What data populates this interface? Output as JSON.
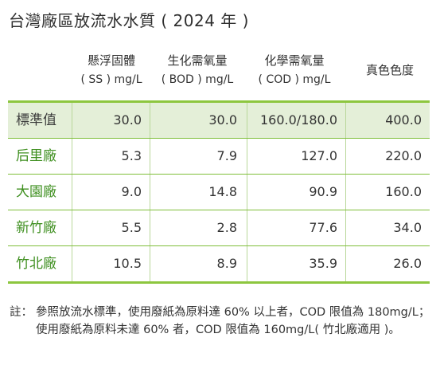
{
  "title": "台灣廠區放流水水質 ( 2024 年 )",
  "headers": [
    {
      "line1": "懸浮固體",
      "line2": "( SS ) mg/L"
    },
    {
      "line1": "生化需氧量",
      "line2": "( BOD ) mg/L"
    },
    {
      "line1": "化學需氧量",
      "line2": "( COD ) mg/L"
    },
    {
      "line1": "真色色度",
      "line2": ""
    }
  ],
  "rows": [
    {
      "label": "標準值",
      "ss": "30.0",
      "bod": "30.0",
      "cod": "160.0/180.0",
      "color": "400.0"
    },
    {
      "label": "后里廠",
      "ss": "5.3",
      "bod": "7.9",
      "cod": "127.0",
      "color": "220.0"
    },
    {
      "label": "大園廠",
      "ss": "9.0",
      "bod": "14.8",
      "cod": "90.9",
      "color": "160.0"
    },
    {
      "label": "新竹廠",
      "ss": "5.5",
      "bod": "2.8",
      "cod": "77.6",
      "color": "34.0"
    },
    {
      "label": "竹北廠",
      "ss": "10.5",
      "bod": "8.9",
      "cod": "35.9",
      "color": "26.0"
    }
  ],
  "note": {
    "label": "註：",
    "text": "參照放流水標準，使用廢紙為原料達 60% 以上者，COD 限值為 180mg/L；使用廢紙為原料未達 60% 者，COD 限值為 160mg/L( 竹北廠適用 )。"
  },
  "colors": {
    "accent_green": "#8dc63f",
    "label_green": "#3e8f1f",
    "standard_row_bg": "#e4efd8"
  }
}
